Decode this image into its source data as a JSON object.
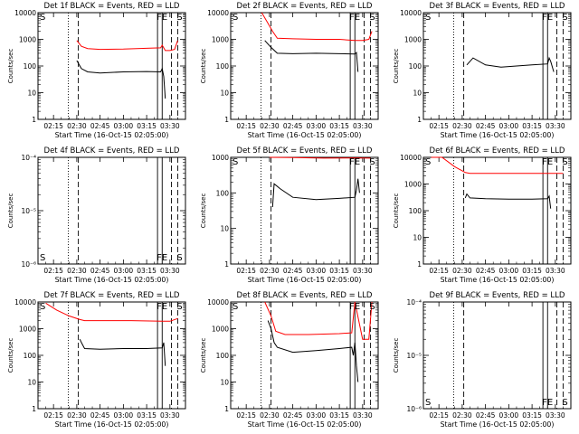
{
  "chart_data": [
    {
      "type": "line",
      "title": "Det 1f BLACK = Events, RED = LLD",
      "xlabel": "Start Time (16-Oct-15 02:05:00)",
      "ylabel": "Counts/sec",
      "ylog": true,
      "ylim": [
        1,
        10000
      ],
      "yticks": [
        "1",
        "10",
        "100",
        "1000",
        "10000"
      ],
      "xticks": [
        "02:15",
        "02:30",
        "02:45",
        "03:00",
        "03:15",
        "03:30"
      ],
      "markers": {
        "left": "S",
        "right": [
          "FE",
          "S"
        ]
      },
      "series": [
        {
          "color": "#000000",
          "x": [
            25,
            28,
            32,
            40,
            55,
            70,
            79,
            80,
            81,
            82
          ],
          "y": [
            160,
            80,
            60,
            55,
            60,
            62,
            60,
            80,
            40,
            6
          ]
        },
        {
          "color": "#ff0000",
          "x": [
            25,
            28,
            32,
            40,
            55,
            70,
            79,
            80,
            82,
            85,
            88,
            90
          ],
          "y": [
            900,
            550,
            450,
            420,
            430,
            460,
            480,
            600,
            380,
            380,
            420,
            900
          ]
        }
      ]
    },
    {
      "type": "line",
      "title": "Det 2f BLACK = Events, RED = LLD",
      "xlabel": "Start Time (16-Oct-15 02:05:00)",
      "ylabel": "Counts/sec",
      "ylog": true,
      "ylim": [
        1,
        10000
      ],
      "yticks": [
        "1",
        "10",
        "100",
        "1000",
        "10000"
      ],
      "xticks": [
        "02:15",
        "02:30",
        "02:45",
        "03:00",
        "03:15",
        "03:30"
      ],
      "markers": {
        "left": "S",
        "right": [
          "FE",
          "S"
        ]
      },
      "series": [
        {
          "color": "#000000",
          "x": [
            22,
            26,
            30,
            40,
            55,
            70,
            80,
            81,
            82
          ],
          "y": [
            900,
            500,
            300,
            290,
            300,
            290,
            280,
            320,
            60
          ]
        },
        {
          "color": "#ff0000",
          "x": [
            20,
            24,
            27,
            30,
            40,
            55,
            70,
            80,
            85,
            89,
            91
          ],
          "y": [
            10000,
            4000,
            2000,
            1100,
            1050,
            1000,
            1000,
            900,
            900,
            1000,
            2000
          ]
        }
      ]
    },
    {
      "type": "line",
      "title": "Det 3f BLACK = Events, RED = LLD",
      "xlabel": "Start Time (16-Oct-15 02:05:00)",
      "ylabel": "Counts/sec",
      "ylog": true,
      "ylim": [
        1,
        10000
      ],
      "yticks": [
        "1",
        "10",
        "100",
        "1000",
        "10000"
      ],
      "xticks": [
        "02:15",
        "02:30",
        "02:45",
        "03:00",
        "03:15",
        "03:30"
      ],
      "markers": {
        "left": "S",
        "right": [
          "FE",
          "S"
        ]
      },
      "series": [
        {
          "color": "#000000",
          "x": [
            28,
            32,
            40,
            50,
            60,
            70,
            80,
            81,
            82,
            84
          ],
          "y": [
            110,
            200,
            110,
            90,
            100,
            110,
            120,
            200,
            150,
            60
          ]
        }
      ]
    },
    {
      "type": "line",
      "title": "Det 4f BLACK = Events, RED = LLD",
      "xlabel": "Start Time (16-Oct-15 02:05:00)",
      "ylabel": "Counts/sec",
      "ylog": true,
      "ylim": [
        1e-06,
        0.0001
      ],
      "yticks": [
        "10⁻⁶",
        "10⁻⁵",
        "10⁻⁴"
      ],
      "xticks": [
        "02:15",
        "02:30",
        "02:45",
        "03:00",
        "03:15",
        "03:30"
      ],
      "markers": {
        "left": "S",
        "right": [
          "FE",
          "S"
        ]
      },
      "series": []
    },
    {
      "type": "line",
      "title": "Det 5f BLACK = Events, RED = LLD",
      "xlabel": "Start Time (16-Oct-15 02:05:00)",
      "ylabel": "Counts/sec",
      "ylog": true,
      "ylim": [
        1,
        1000
      ],
      "yticks": [
        "1",
        "10",
        "100",
        "1000"
      ],
      "xticks": [
        "02:15",
        "02:30",
        "02:45",
        "03:00",
        "03:15",
        "03:30"
      ],
      "markers": {
        "left": "S",
        "right": [
          "FE",
          "S"
        ]
      },
      "series": [
        {
          "color": "#000000",
          "x": [
            27,
            28,
            32,
            40,
            55,
            70,
            80,
            81,
            82,
            83
          ],
          "y": [
            40,
            180,
            130,
            75,
            65,
            70,
            75,
            120,
            250,
            100
          ]
        },
        {
          "color": "#ff0000",
          "x": [
            25,
            40,
            60,
            80,
            90
          ],
          "y": [
            1000,
            980,
            950,
            960,
            950
          ]
        }
      ]
    },
    {
      "type": "line",
      "title": "Det 6f BLACK = Events, RED = LLD",
      "xlabel": "Start Time (16-Oct-15 02:05:00)",
      "ylabel": "Counts/sec",
      "ylog": true,
      "ylim": [
        1,
        10000
      ],
      "yticks": [
        "1",
        "10",
        "100",
        "1000",
        "10000"
      ],
      "xticks": [
        "02:15",
        "02:30",
        "02:45",
        "03:00",
        "03:15",
        "03:30"
      ],
      "markers": {
        "left": "S",
        "right": [
          "FE",
          "S"
        ]
      },
      "series": [
        {
          "color": "#000000",
          "x": [
            27,
            28,
            30,
            40,
            55,
            70,
            80,
            81,
            82
          ],
          "y": [
            300,
            420,
            300,
            280,
            270,
            270,
            280,
            350,
            120
          ]
        },
        {
          "color": "#ff0000",
          "x": [
            5,
            12,
            20,
            27,
            30,
            45,
            60,
            80,
            90
          ],
          "y": [
            10000,
            10000,
            4500,
            2700,
            2500,
            2500,
            2500,
            2500,
            2500
          ]
        }
      ]
    },
    {
      "type": "line",
      "title": "Det 7f BLACK = Events, RED = LLD",
      "xlabel": "Start Time (16-Oct-15 02:05:00)",
      "ylabel": "Counts/sec",
      "ylog": true,
      "ylim": [
        1,
        10000
      ],
      "yticks": [
        "1",
        "10",
        "100",
        "1000",
        "10000"
      ],
      "xticks": [
        "02:15",
        "02:30",
        "02:45",
        "03:00",
        "03:15",
        "03:30"
      ],
      "markers": {
        "left": "S",
        "right": [
          "FE",
          "S"
        ]
      },
      "series": [
        {
          "color": "#000000",
          "x": [
            27,
            28,
            30,
            40,
            55,
            70,
            80,
            81,
            82
          ],
          "y": [
            400,
            300,
            180,
            170,
            180,
            180,
            190,
            300,
            40
          ]
        },
        {
          "color": "#ff0000",
          "x": [
            5,
            12,
            20,
            27,
            30,
            40,
            60,
            80,
            85,
            90
          ],
          "y": [
            9000,
            5000,
            3000,
            2200,
            2000,
            2000,
            2000,
            1900,
            1900,
            2400
          ]
        }
      ]
    },
    {
      "type": "line",
      "title": "Det 8f BLACK = Events, RED = LLD",
      "xlabel": "Start Time (16-Oct-15 02:05:00)",
      "ylabel": "Counts/sec",
      "ylog": true,
      "ylim": [
        1,
        10000
      ],
      "yticks": [
        "1",
        "10",
        "100",
        "1000",
        "10000"
      ],
      "xticks": [
        "02:15",
        "02:30",
        "02:45",
        "03:00",
        "03:15",
        "03:30"
      ],
      "markers": {
        "left": "S",
        "right": [
          "FE",
          "S"
        ]
      },
      "series": [
        {
          "color": "#000000",
          "x": [
            24,
            26,
            28,
            30,
            40,
            55,
            70,
            78,
            79,
            80,
            81,
            82
          ],
          "y": [
            2000,
            1000,
            300,
            200,
            130,
            150,
            180,
            200,
            100,
            300,
            40,
            10
          ]
        },
        {
          "color": "#ff0000",
          "x": [
            22,
            26,
            29,
            35,
            50,
            70,
            78,
            80,
            85,
            89,
            91
          ],
          "y": [
            10000,
            3000,
            800,
            600,
            600,
            650,
            700,
            10000,
            400,
            400,
            10000
          ]
        }
      ]
    },
    {
      "type": "line",
      "title": "Det 9f BLACK = Events, RED = LLD",
      "xlabel": "Start Time (16-Oct-15 02:05:00)",
      "ylabel": "Counts/sec",
      "ylog": true,
      "ylim": [
        1e-06,
        0.0001
      ],
      "yticks": [
        "10⁻⁶",
        "10⁻⁵",
        "10⁻⁴"
      ],
      "xticks": [
        "02:15",
        "02:30",
        "02:45",
        "03:00",
        "03:15",
        "03:30"
      ],
      "markers": {
        "left": "S",
        "right": [
          "FE",
          "S"
        ]
      },
      "series": []
    }
  ]
}
